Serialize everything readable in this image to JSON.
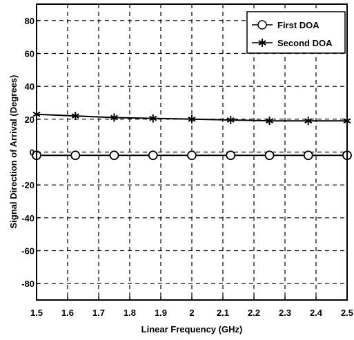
{
  "chart_data": {
    "type": "line",
    "xlabel": "Linear Frequency (GHz)",
    "ylabel": "Signal Direction of Arrival (Degrees)",
    "xlim": [
      1.5,
      2.5
    ],
    "ylim": [
      -90,
      90
    ],
    "x_ticks": [
      "1.5",
      "1.6",
      "1.7",
      "1.8",
      "1.9",
      "2",
      "2.1",
      "2.2",
      "2.3",
      "2.4",
      "2.5"
    ],
    "y_ticks": [
      "80",
      "60",
      "40",
      "20",
      "0",
      "-20",
      "-40",
      "-60",
      "-80"
    ],
    "grid": true,
    "legend_position": "top-right",
    "series": [
      {
        "name": "First DOA",
        "marker": "circle",
        "color": "#000000",
        "x": [
          1.5,
          1.625,
          1.75,
          1.875,
          2.0,
          2.125,
          2.25,
          2.375,
          2.5
        ],
        "y": [
          -2,
          -2,
          -2,
          -2,
          -2,
          -2,
          -2,
          -2,
          -2
        ]
      },
      {
        "name": "Second DOA",
        "marker": "star",
        "color": "#000000",
        "x": [
          1.5,
          1.625,
          1.75,
          1.875,
          2.0,
          2.125,
          2.25,
          2.375,
          2.5
        ],
        "y": [
          23,
          22,
          21,
          20.5,
          20,
          19.5,
          19,
          19,
          19
        ]
      }
    ]
  }
}
